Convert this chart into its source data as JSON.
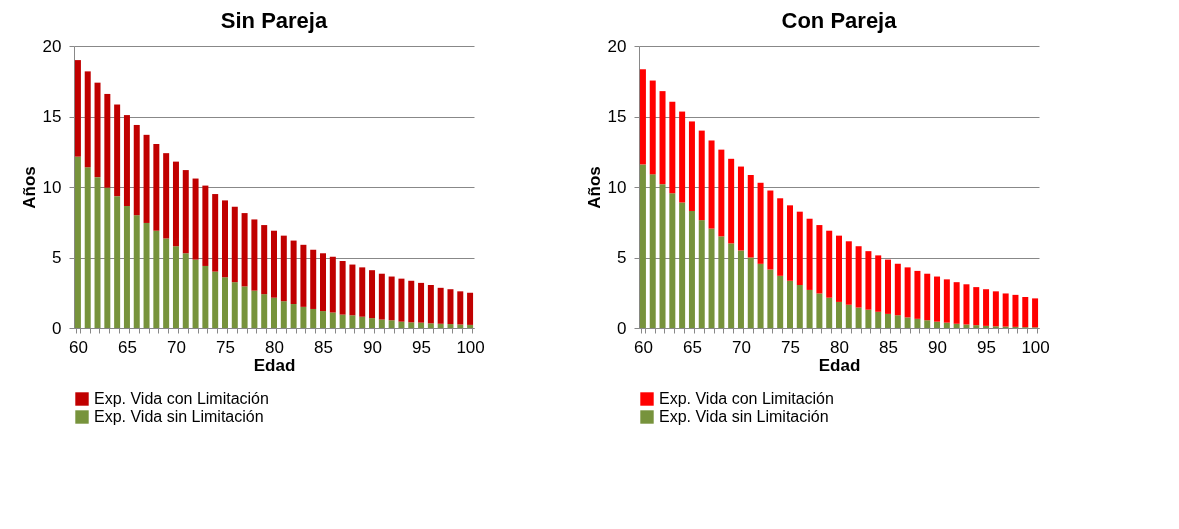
{
  "chart_data": [
    {
      "type": "bar",
      "stacked": true,
      "title": "Sin Pareja",
      "xlabel": "Edad",
      "ylabel": "Años",
      "ylim": [
        0,
        20
      ],
      "yticks": [
        0,
        5,
        10,
        15,
        20
      ],
      "grid": "y",
      "legend": "bottom",
      "categories": [
        "60",
        null,
        null,
        null,
        null,
        "65",
        null,
        null,
        null,
        null,
        "70",
        null,
        null,
        null,
        null,
        "75",
        null,
        null,
        null,
        null,
        "80",
        null,
        null,
        null,
        null,
        "85",
        null,
        null,
        null,
        null,
        "90",
        null,
        null,
        null,
        null,
        "95",
        null,
        null,
        null,
        null,
        "100"
      ],
      "series": [
        {
          "name": "Exp. Vida sin Limitación",
          "color": "#77933c",
          "values": [
            12.15,
            11.4,
            10.7,
            9.95,
            9.35,
            8.65,
            8.0,
            7.45,
            6.9,
            6.35,
            5.8,
            5.3,
            4.85,
            4.4,
            4.0,
            3.6,
            3.25,
            2.95,
            2.65,
            2.4,
            2.15,
            1.9,
            1.7,
            1.5,
            1.35,
            1.2,
            1.1,
            0.95,
            0.9,
            0.8,
            0.7,
            0.6,
            0.55,
            0.45,
            0.4,
            0.38,
            0.33,
            0.3,
            0.28,
            0.25,
            0.22
          ]
        },
        {
          "name": "Exp. Vida con Limitación",
          "color": "#c00000",
          "values": [
            6.85,
            6.8,
            6.7,
            6.65,
            6.5,
            6.45,
            6.4,
            6.25,
            6.15,
            6.05,
            6.0,
            5.9,
            5.75,
            5.7,
            5.5,
            5.45,
            5.35,
            5.2,
            5.05,
            4.9,
            4.75,
            4.65,
            4.5,
            4.4,
            4.2,
            4.1,
            3.95,
            3.8,
            3.6,
            3.5,
            3.4,
            3.25,
            3.1,
            3.05,
            2.95,
            2.82,
            2.72,
            2.55,
            2.47,
            2.35,
            2.28
          ]
        }
      ]
    },
    {
      "type": "bar",
      "stacked": true,
      "title": "Con Pareja",
      "xlabel": "Edad",
      "ylabel": "Años",
      "ylim": [
        0,
        20
      ],
      "yticks": [
        0,
        5,
        10,
        15,
        20
      ],
      "grid": "y",
      "legend": "bottom",
      "categories": [
        "60",
        null,
        null,
        null,
        null,
        "65",
        null,
        null,
        null,
        null,
        "70",
        null,
        null,
        null,
        null,
        "75",
        null,
        null,
        null,
        null,
        "80",
        null,
        null,
        null,
        null,
        "85",
        null,
        null,
        null,
        null,
        "90",
        null,
        null,
        null,
        null,
        "95",
        null,
        null,
        null,
        null,
        "100"
      ],
      "series": [
        {
          "name": "Exp. Vida sin Limitación",
          "color": "#77933c",
          "values": [
            11.6,
            10.9,
            10.2,
            9.55,
            8.9,
            8.3,
            7.65,
            7.05,
            6.5,
            6.0,
            5.5,
            5.0,
            4.55,
            4.15,
            3.7,
            3.35,
            3.05,
            2.7,
            2.45,
            2.15,
            1.85,
            1.65,
            1.45,
            1.3,
            1.15,
            1.0,
            0.9,
            0.75,
            0.65,
            0.55,
            0.45,
            0.38,
            0.3,
            0.25,
            0.2,
            0.15,
            0.12,
            0.1,
            0.08,
            0.06,
            0.05
          ]
        },
        {
          "name": "Exp. Vida con Limitación",
          "color": "#ff0000",
          "values": [
            6.75,
            6.65,
            6.6,
            6.5,
            6.45,
            6.35,
            6.35,
            6.25,
            6.15,
            6.0,
            5.95,
            5.85,
            5.75,
            5.6,
            5.5,
            5.35,
            5.2,
            5.05,
            4.85,
            4.75,
            4.7,
            4.5,
            4.35,
            4.15,
            4.0,
            3.85,
            3.65,
            3.55,
            3.4,
            3.3,
            3.2,
            3.07,
            2.95,
            2.85,
            2.7,
            2.6,
            2.48,
            2.35,
            2.27,
            2.14,
            2.05
          ]
        }
      ]
    }
  ]
}
